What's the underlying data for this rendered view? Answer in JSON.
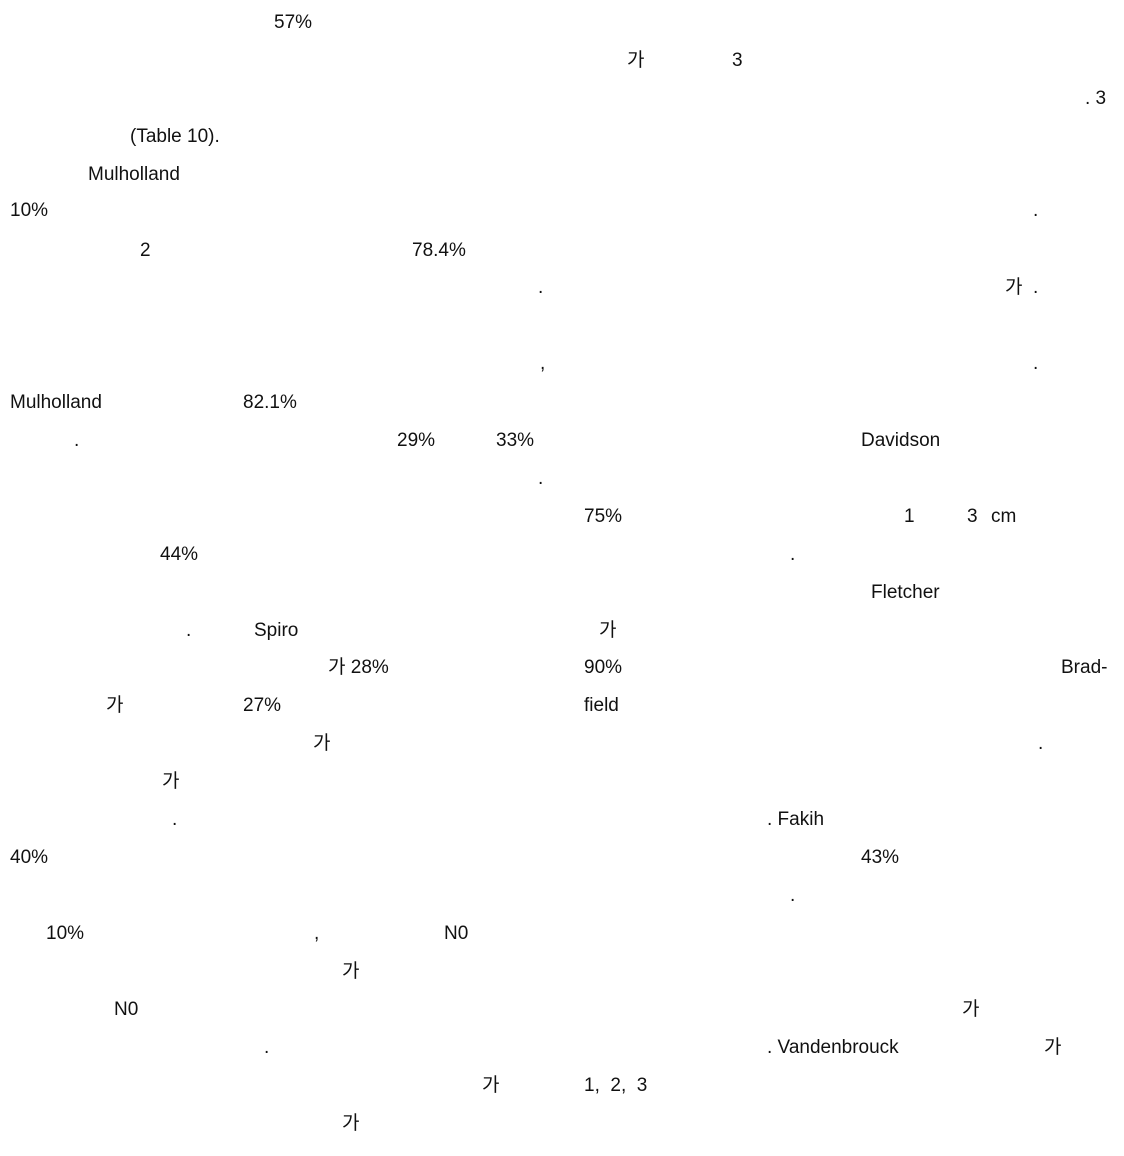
{
  "fragments": [
    "57%",
    "가",
    "3",
    ". 3",
    "(Table 10).",
    "Mulholland",
    "10%",
    ".",
    "2",
    "78.4%",
    ".",
    "가",
    ".",
    ",",
    ".",
    "Mulholland",
    "82.1%",
    ".",
    "29%",
    "33%",
    "Davidson",
    ".",
    "75%",
    "1",
    "3",
    "cm",
    "44%",
    ".",
    "Fletcher",
    ".",
    "Spiro",
    "가",
    "가 28%",
    "90%",
    "Brad-",
    "가",
    "27%",
    "field",
    "가",
    ".",
    "가",
    ".",
    ". Fakih",
    "40%",
    "43%",
    ".",
    "10%",
    ",",
    "N0",
    "가",
    "N0",
    "가",
    ".",
    ". Vandenbrouck",
    "가",
    "가",
    "1,  2,  3",
    "가"
  ]
}
